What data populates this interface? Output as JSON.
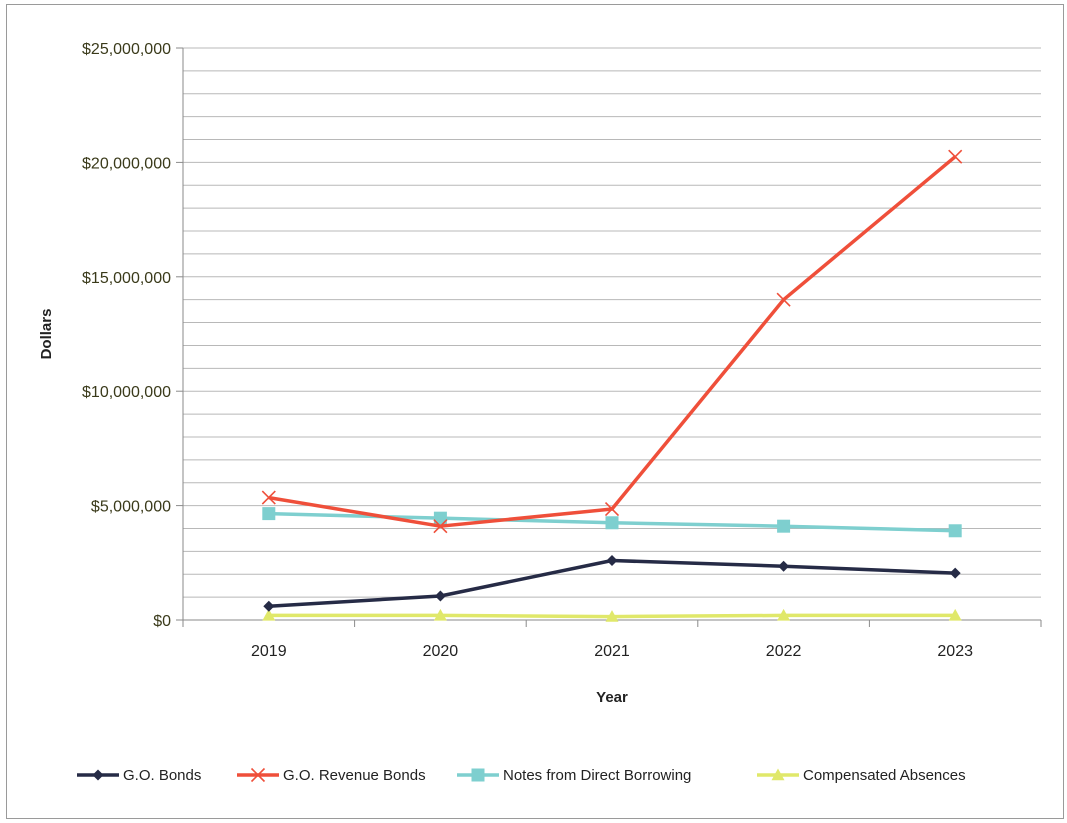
{
  "chart_data": {
    "type": "line",
    "title": "",
    "xlabel": "Year",
    "ylabel": "Dollars",
    "categories": [
      "2019",
      "2020",
      "2021",
      "2022",
      "2023"
    ],
    "ylim": [
      0,
      25000000
    ],
    "y_major_step": 5000000,
    "y_minor_step": 1000000,
    "y_ticks": [
      {
        "value": 0,
        "label": "$0"
      },
      {
        "value": 5000000,
        "label": "$5,000,000"
      },
      {
        "value": 10000000,
        "label": "$10,000,000"
      },
      {
        "value": 15000000,
        "label": "$15,000,000"
      },
      {
        "value": 20000000,
        "label": "$20,000,000"
      },
      {
        "value": 25000000,
        "label": "$25,000,000"
      }
    ],
    "grid": true,
    "legend_position": "bottom",
    "series": [
      {
        "name": "G.O. Bonds",
        "color": "#262b46",
        "marker": "diamond",
        "values": [
          600000,
          1050000,
          2600000,
          2350000,
          2050000
        ]
      },
      {
        "name": "G.O. Revenue Bonds",
        "color": "#ef4f3a",
        "marker": "x",
        "values": [
          5350000,
          4100000,
          4850000,
          14000000,
          20250000
        ]
      },
      {
        "name": "Notes from Direct Borrowing",
        "color": "#7ecfcf",
        "marker": "square",
        "values": [
          4650000,
          4450000,
          4250000,
          4100000,
          3900000
        ]
      },
      {
        "name": "Compensated Absences",
        "color": "#e0e86a",
        "marker": "triangle",
        "values": [
          200000,
          200000,
          150000,
          200000,
          200000
        ]
      }
    ]
  }
}
